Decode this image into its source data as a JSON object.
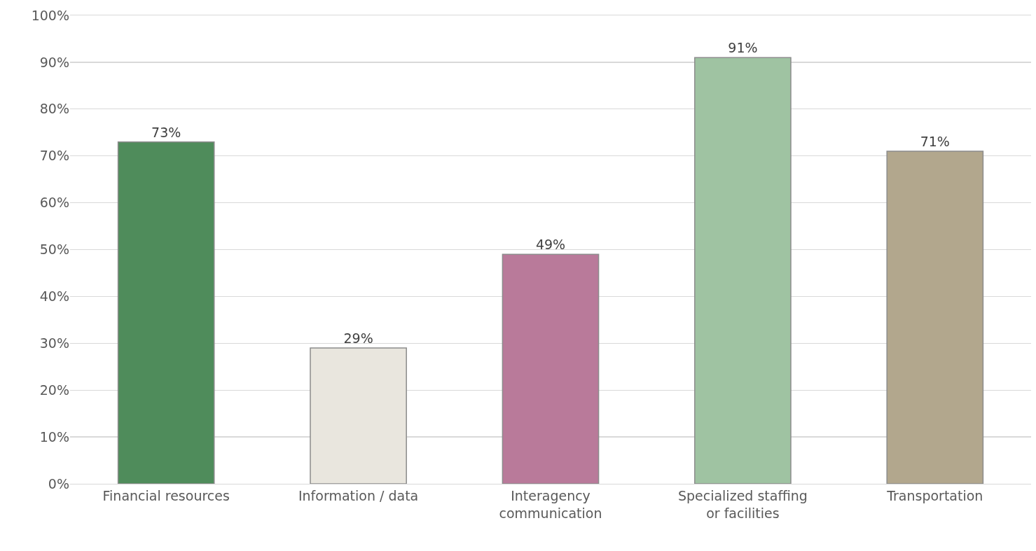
{
  "chart_data": {
    "type": "bar",
    "categories": [
      "Financial resources",
      "Information / data",
      "Interagency communication",
      "Specialized staffing or facilities",
      "Transportation"
    ],
    "values": [
      73,
      29,
      49,
      91,
      71
    ],
    "value_labels": [
      "73%",
      "29%",
      "49%",
      "91%",
      "71%"
    ],
    "colors": [
      "#4f8c5b",
      "#e9e6de",
      "#b97a9a",
      "#9fc3a2",
      "#b2a78d"
    ],
    "ylim": [
      0,
      100
    ],
    "yticks": [
      {
        "value": 0,
        "label": "0%"
      },
      {
        "value": 10,
        "label": "10%"
      },
      {
        "value": 20,
        "label": "20%"
      },
      {
        "value": 30,
        "label": "30%"
      },
      {
        "value": 40,
        "label": "40%"
      },
      {
        "value": 50,
        "label": "50%"
      },
      {
        "value": 60,
        "label": "60%"
      },
      {
        "value": 70,
        "label": "70%"
      },
      {
        "value": 80,
        "label": "80%"
      },
      {
        "value": 90,
        "label": "90%"
      },
      {
        "value": 100,
        "label": "100%"
      }
    ],
    "grid": "y"
  }
}
